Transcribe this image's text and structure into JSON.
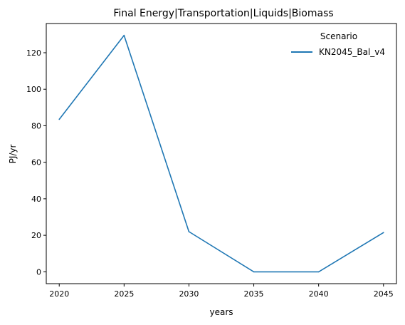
{
  "chart_data": {
    "type": "line",
    "title": "Final Energy|Transportation|Liquids|Biomass",
    "xlabel": "years",
    "ylabel": "PJ/yr",
    "x": [
      2020,
      2025,
      2030,
      2035,
      2040,
      2045
    ],
    "xlim": [
      2019,
      2046
    ],
    "ylim": [
      -6.5,
      136
    ],
    "xticks": [
      "2020",
      "2025",
      "2030",
      "2035",
      "2040",
      "2045"
    ],
    "yticks": [
      "0",
      "20",
      "40",
      "60",
      "80",
      "100",
      "120"
    ],
    "grid": false,
    "legend": {
      "title": "Scenario",
      "placement": "top-right"
    },
    "series": [
      {
        "name": "KN2045_Bal_v4",
        "color": "#1f77b4",
        "values": [
          83.5,
          129.5,
          22,
          0,
          0,
          21.5
        ]
      }
    ]
  }
}
